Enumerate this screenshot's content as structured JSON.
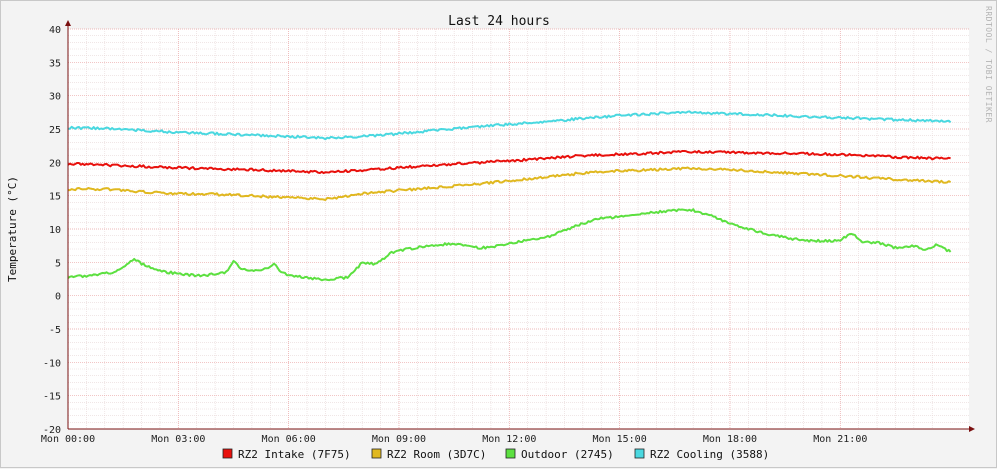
{
  "chart_data": {
    "type": "line",
    "title": "Last 24 hours",
    "ylabel": "Temperature (°C)",
    "watermark": "RRDTOOL / TOBI OETIKER",
    "ylim": [
      -20,
      40
    ],
    "yticks": [
      40,
      35,
      30,
      25,
      20,
      15,
      10,
      5,
      0,
      -5,
      -10,
      -15,
      -20
    ],
    "x_unit": "hours",
    "xlim": [
      0,
      24.5
    ],
    "xticks": [
      {
        "x": 0,
        "label": "Mon 00:00"
      },
      {
        "x": 3,
        "label": "Mon 03:00"
      },
      {
        "x": 6,
        "label": "Mon 06:00"
      },
      {
        "x": 9,
        "label": "Mon 09:00"
      },
      {
        "x": 12,
        "label": "Mon 12:00"
      },
      {
        "x": 15,
        "label": "Mon 15:00"
      },
      {
        "x": 18,
        "label": "Mon 18:00"
      },
      {
        "x": 21,
        "label": "Mon 21:00"
      }
    ],
    "colors": {
      "background": "#f3f3f3",
      "canvas": "#ffffff",
      "grid_minor": "#e6d6d6",
      "grid_major": "#e9a3a3",
      "axis": "#7a1010"
    },
    "grid": true,
    "legend_position": "bottom",
    "series": [
      {
        "name": "RZ2 Intake (7F75)",
        "color": "#e8100c",
        "points": [
          [
            0,
            19.8
          ],
          [
            1,
            19.6
          ],
          [
            2,
            19.4
          ],
          [
            3,
            19.2
          ],
          [
            4,
            19.0
          ],
          [
            5,
            18.9
          ],
          [
            6,
            18.7
          ],
          [
            7,
            18.5
          ],
          [
            8,
            18.8
          ],
          [
            9,
            19.2
          ],
          [
            10,
            19.6
          ],
          [
            11,
            19.9
          ],
          [
            12,
            20.2
          ],
          [
            13,
            20.6
          ],
          [
            14,
            21.0
          ],
          [
            15,
            21.2
          ],
          [
            16,
            21.4
          ],
          [
            17,
            21.6
          ],
          [
            18,
            21.5
          ],
          [
            19,
            21.4
          ],
          [
            20,
            21.3
          ],
          [
            21,
            21.2
          ],
          [
            22,
            20.9
          ],
          [
            23,
            20.7
          ],
          [
            24,
            20.5
          ]
        ]
      },
      {
        "name": "RZ2 Room (3D7C)",
        "color": "#e0b820",
        "points": [
          [
            0,
            16.0
          ],
          [
            1,
            16.0
          ],
          [
            1.5,
            15.8
          ],
          [
            2,
            15.6
          ],
          [
            3,
            15.3
          ],
          [
            4,
            15.2
          ],
          [
            5,
            15.0
          ],
          [
            6,
            14.7
          ],
          [
            7,
            14.5
          ],
          [
            7.5,
            14.8
          ],
          [
            8,
            15.3
          ],
          [
            9,
            15.8
          ],
          [
            10,
            16.2
          ],
          [
            11,
            16.7
          ],
          [
            12,
            17.2
          ],
          [
            13,
            17.8
          ],
          [
            14,
            18.4
          ],
          [
            15,
            18.7
          ],
          [
            16,
            18.9
          ],
          [
            17,
            19.1
          ],
          [
            18,
            18.9
          ],
          [
            19,
            18.6
          ],
          [
            20,
            18.3
          ],
          [
            21,
            18.0
          ],
          [
            22,
            17.6
          ],
          [
            23,
            17.3
          ],
          [
            24,
            17.0
          ]
        ]
      },
      {
        "name": "Outdoor (2745)",
        "color": "#5ce040",
        "points": [
          [
            0,
            2.8
          ],
          [
            0.5,
            3.0
          ],
          [
            1,
            3.3
          ],
          [
            1.3,
            3.6
          ],
          [
            1.6,
            4.8
          ],
          [
            1.8,
            5.6
          ],
          [
            2,
            4.8
          ],
          [
            2.3,
            4.2
          ],
          [
            2.6,
            3.6
          ],
          [
            3,
            3.3
          ],
          [
            3.5,
            3.0
          ],
          [
            4,
            3.2
          ],
          [
            4.3,
            3.5
          ],
          [
            4.5,
            5.2
          ],
          [
            4.7,
            4.0
          ],
          [
            5,
            3.7
          ],
          [
            5.3,
            3.8
          ],
          [
            5.6,
            4.8
          ],
          [
            5.8,
            3.6
          ],
          [
            6,
            3.0
          ],
          [
            6.5,
            2.7
          ],
          [
            7,
            2.4
          ],
          [
            7.3,
            2.6
          ],
          [
            7.6,
            2.7
          ],
          [
            7.8,
            3.8
          ],
          [
            8,
            5.0
          ],
          [
            8.3,
            4.8
          ],
          [
            8.5,
            5.2
          ],
          [
            8.8,
            6.5
          ],
          [
            9,
            6.8
          ],
          [
            9.5,
            7.2
          ],
          [
            10,
            7.6
          ],
          [
            10.5,
            7.8
          ],
          [
            11,
            7.2
          ],
          [
            11.5,
            7.2
          ],
          [
            12,
            7.8
          ],
          [
            12.5,
            8.3
          ],
          [
            13,
            8.7
          ],
          [
            13.5,
            9.8
          ],
          [
            14,
            10.8
          ],
          [
            14.5,
            11.6
          ],
          [
            15,
            11.8
          ],
          [
            15.5,
            12.3
          ],
          [
            16,
            12.5
          ],
          [
            16.5,
            12.8
          ],
          [
            17,
            12.8
          ],
          [
            17.5,
            12.0
          ],
          [
            18,
            10.8
          ],
          [
            18.5,
            10.0
          ],
          [
            19,
            9.3
          ],
          [
            19.5,
            8.7
          ],
          [
            20,
            8.3
          ],
          [
            20.5,
            8.2
          ],
          [
            21,
            8.3
          ],
          [
            21.3,
            9.4
          ],
          [
            21.6,
            8.0
          ],
          [
            22,
            8.0
          ],
          [
            22.5,
            7.2
          ],
          [
            23,
            7.5
          ],
          [
            23.3,
            6.8
          ],
          [
            23.6,
            7.6
          ],
          [
            24,
            6.6
          ]
        ]
      },
      {
        "name": "RZ2 Cooling (3588)",
        "color": "#4ad8e0",
        "points": [
          [
            0,
            25.2
          ],
          [
            1,
            25.1
          ],
          [
            2,
            24.8
          ],
          [
            3,
            24.5
          ],
          [
            4,
            24.3
          ],
          [
            5,
            24.1
          ],
          [
            6,
            23.9
          ],
          [
            7,
            23.6
          ],
          [
            8,
            23.9
          ],
          [
            9,
            24.3
          ],
          [
            10,
            24.8
          ],
          [
            11,
            25.3
          ],
          [
            12,
            25.7
          ],
          [
            13,
            26.1
          ],
          [
            14,
            26.6
          ],
          [
            15,
            27.0
          ],
          [
            16,
            27.3
          ],
          [
            17,
            27.5
          ],
          [
            18,
            27.3
          ],
          [
            19,
            27.1
          ],
          [
            20,
            26.9
          ],
          [
            21,
            26.7
          ],
          [
            22,
            26.5
          ],
          [
            23,
            26.3
          ],
          [
            24,
            26.1
          ]
        ]
      }
    ]
  }
}
